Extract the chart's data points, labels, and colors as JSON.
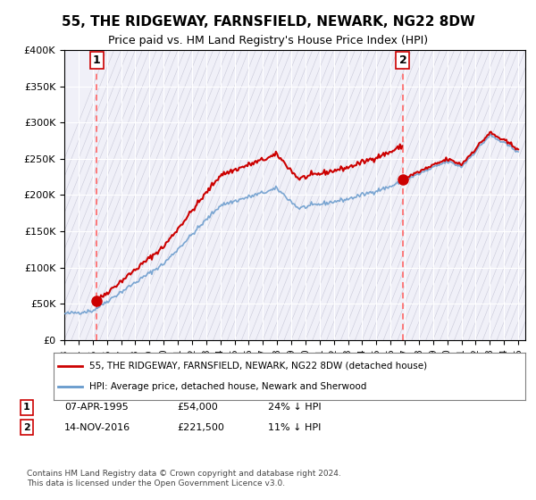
{
  "title": "55, THE RIDGEWAY, FARNSFIELD, NEWARK, NG22 8DW",
  "subtitle": "Price paid vs. HM Land Registry's House Price Index (HPI)",
  "xlabel": "",
  "ylabel": "",
  "background_color": "#ffffff",
  "plot_bg_color": "#f0f0f8",
  "grid_color": "#ffffff",
  "hatch_color": "#d0d0e0",
  "purchase1_date": 1995.27,
  "purchase1_price": 54000,
  "purchase1_label": "1",
  "purchase2_date": 2016.87,
  "purchase2_price": 221500,
  "purchase2_label": "2",
  "xmin": 1993,
  "xmax": 2025.5,
  "ymin": 0,
  "ymax": 400000,
  "legend_line1": "55, THE RIDGEWAY, FARNSFIELD, NEWARK, NG22 8DW (detached house)",
  "legend_line2": "HPI: Average price, detached house, Newark and Sherwood",
  "table_row1": [
    "1",
    "07-APR-1995",
    "£54,000",
    "24% ↓ HPI"
  ],
  "table_row2": [
    "2",
    "14-NOV-2016",
    "£221,500",
    "11% ↓ HPI"
  ],
  "footnote": "Contains HM Land Registry data © Crown copyright and database right 2024.\nThis data is licensed under the Open Government Licence v3.0.",
  "red_line_color": "#cc0000",
  "blue_line_color": "#6699cc",
  "marker_color": "#cc0000",
  "dashed_line_color": "#ff6666"
}
